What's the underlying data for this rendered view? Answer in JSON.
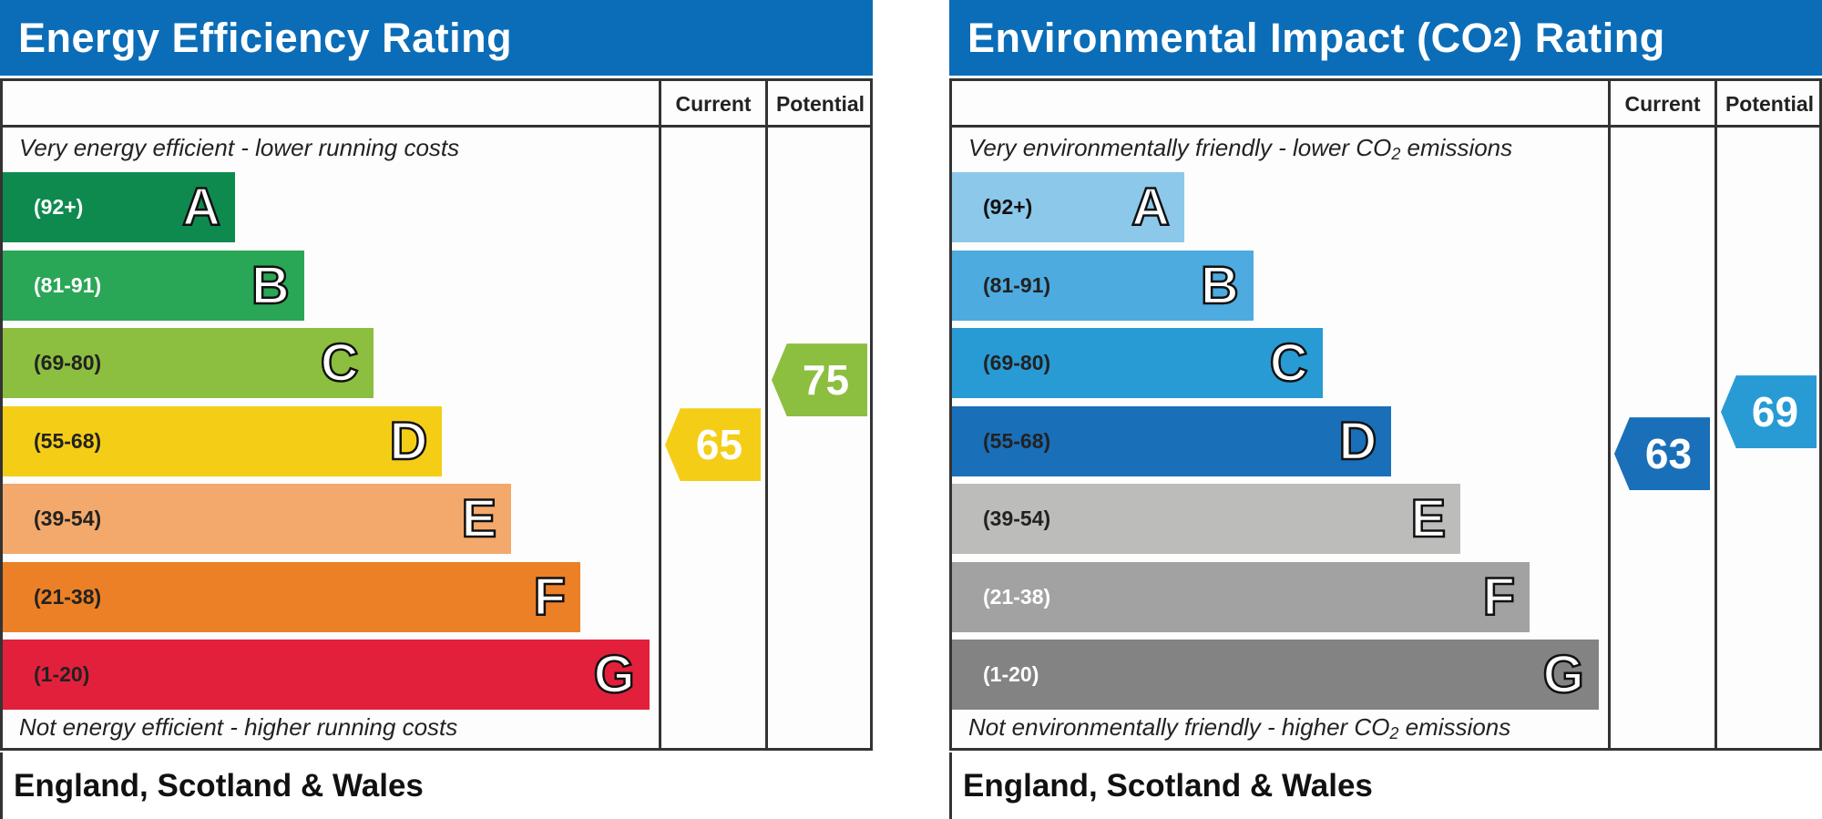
{
  "energy": {
    "title": "Energy Efficiency Rating",
    "col_current": "Current",
    "col_potential": "Potential",
    "top_caption": "Very energy efficient - lower running costs",
    "bottom_caption": "Not energy efficient - higher running costs",
    "footer": "England, Scotland & Wales",
    "bands": [
      {
        "range": "(92+)",
        "letter": "A",
        "color": "#0f8a4f",
        "text_color": "#ffffff"
      },
      {
        "range": "(81-91)",
        "letter": "B",
        "color": "#2aa657",
        "text_color": "#ffffff"
      },
      {
        "range": "(69-80)",
        "letter": "C",
        "color": "#8cbe3f",
        "text_color": "#222222"
      },
      {
        "range": "(55-68)",
        "letter": "D",
        "color": "#f4cd17",
        "text_color": "#222222"
      },
      {
        "range": "(39-54)",
        "letter": "E",
        "color": "#f2a96b",
        "text_color": "#222222"
      },
      {
        "range": "(21-38)",
        "letter": "F",
        "color": "#ec8026",
        "text_color": "#222222"
      },
      {
        "range": "(1-20)",
        "letter": "G",
        "color": "#e3203c",
        "text_color": "#222222"
      }
    ],
    "current": {
      "value": "65",
      "color": "#f4cd17"
    },
    "potential": {
      "value": "75",
      "color": "#8cbe3f"
    }
  },
  "environment": {
    "title_main": "Environmental Impact (CO",
    "title_sub": "2",
    "title_end": ") Rating",
    "col_current": "Current",
    "col_potential": "Potential",
    "top_caption_main": "Very environmentally friendly - lower CO",
    "top_caption_sub": "2",
    "top_caption_end": " emissions",
    "bottom_caption_main": "Not environmentally friendly - higher CO",
    "bottom_caption_sub": "2",
    "bottom_caption_end": " emissions",
    "footer": "England, Scotland & Wales",
    "bands": [
      {
        "range": "(92+)",
        "letter": "A",
        "color": "#8cc8ea",
        "text_color": "#111111"
      },
      {
        "range": "(81-91)",
        "letter": "B",
        "color": "#4dabdf",
        "text_color": "#222222"
      },
      {
        "range": "(69-80)",
        "letter": "C",
        "color": "#289ad4",
        "text_color": "#222222"
      },
      {
        "range": "(55-68)",
        "letter": "D",
        "color": "#1a6fb9",
        "text_color": "#222222"
      },
      {
        "range": "(39-54)",
        "letter": "E",
        "color": "#bcbcba",
        "text_color": "#222222"
      },
      {
        "range": "(21-38)",
        "letter": "F",
        "color": "#a2a2a2",
        "text_color": "#ffffff"
      },
      {
        "range": "(1-20)",
        "letter": "G",
        "color": "#838383",
        "text_color": "#ffffff"
      }
    ],
    "current": {
      "value": "63",
      "color": "#1a6fb9"
    },
    "potential": {
      "value": "69",
      "color": "#289ad4"
    }
  }
}
